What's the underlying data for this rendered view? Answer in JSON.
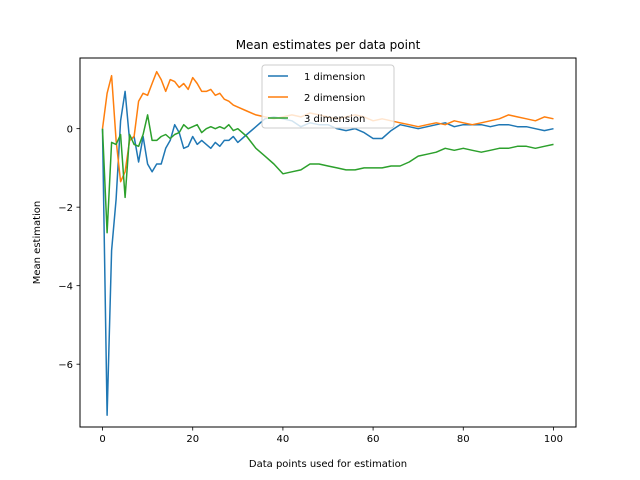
{
  "chart_data": {
    "type": "line",
    "title": "Mean estimates per data point",
    "xlabel": "Data points used for estimation",
    "ylabel": "Mean estimation",
    "xlim": [
      -5,
      105
    ],
    "ylim": [
      -7.6,
      1.8
    ],
    "xticks": [
      0,
      20,
      40,
      60,
      80,
      100
    ],
    "yticks": [
      -6,
      -4,
      -2,
      0
    ],
    "ytick_labels": [
      "−6",
      "−4",
      "−2",
      "0"
    ],
    "grid": false,
    "legend_position": "top-center",
    "series": [
      {
        "name": "1 dimension",
        "color": "#1f77b4",
        "points": [
          [
            0,
            0
          ],
          [
            1,
            -7.3
          ],
          [
            2,
            -3.1
          ],
          [
            3,
            -1.8
          ],
          [
            4,
            0.2
          ],
          [
            5,
            0.95
          ],
          [
            6,
            -0.3
          ],
          [
            7,
            -0.2
          ],
          [
            8,
            -0.85
          ],
          [
            9,
            -0.2
          ],
          [
            10,
            -0.9
          ],
          [
            11,
            -1.1
          ],
          [
            12,
            -0.9
          ],
          [
            13,
            -0.9
          ],
          [
            14,
            -0.5
          ],
          [
            15,
            -0.3
          ],
          [
            16,
            0.1
          ],
          [
            17,
            -0.1
          ],
          [
            18,
            -0.5
          ],
          [
            19,
            -0.45
          ],
          [
            20,
            -0.2
          ],
          [
            21,
            -0.4
          ],
          [
            22,
            -0.3
          ],
          [
            23,
            -0.4
          ],
          [
            24,
            -0.5
          ],
          [
            25,
            -0.35
          ],
          [
            26,
            -0.45
          ],
          [
            27,
            -0.3
          ],
          [
            28,
            -0.3
          ],
          [
            29,
            -0.2
          ],
          [
            30,
            -0.35
          ],
          [
            32,
            -0.15
          ],
          [
            34,
            0.05
          ],
          [
            36,
            0.25
          ],
          [
            38,
            0.3
          ],
          [
            40,
            0.25
          ],
          [
            42,
            0.2
          ],
          [
            44,
            0.05
          ],
          [
            46,
            0.15
          ],
          [
            48,
            0.1
          ],
          [
            50,
            0.1
          ],
          [
            52,
            0.0
          ],
          [
            54,
            -0.05
          ],
          [
            56,
            0.0
          ],
          [
            58,
            -0.1
          ],
          [
            60,
            -0.25
          ],
          [
            62,
            -0.25
          ],
          [
            64,
            -0.05
          ],
          [
            66,
            0.1
          ],
          [
            68,
            0.05
          ],
          [
            70,
            0.0
          ],
          [
            72,
            0.05
          ],
          [
            74,
            0.1
          ],
          [
            76,
            0.15
          ],
          [
            78,
            0.05
          ],
          [
            80,
            0.1
          ],
          [
            82,
            0.1
          ],
          [
            84,
            0.1
          ],
          [
            86,
            0.05
          ],
          [
            88,
            0.1
          ],
          [
            90,
            0.1
          ],
          [
            92,
            0.05
          ],
          [
            94,
            0.05
          ],
          [
            96,
            0.0
          ],
          [
            98,
            -0.05
          ],
          [
            100,
            0.0
          ]
        ]
      },
      {
        "name": "2 dimension",
        "color": "#ff7f0e",
        "points": [
          [
            0,
            0
          ],
          [
            1,
            0.9
          ],
          [
            2,
            1.35
          ],
          [
            3,
            -0.3
          ],
          [
            4,
            -1.35
          ],
          [
            5,
            -1.1
          ],
          [
            6,
            -0.3
          ],
          [
            7,
            -0.2
          ],
          [
            8,
            0.7
          ],
          [
            9,
            0.9
          ],
          [
            10,
            0.85
          ],
          [
            11,
            1.15
          ],
          [
            12,
            1.45
          ],
          [
            13,
            1.25
          ],
          [
            14,
            0.95
          ],
          [
            15,
            1.25
          ],
          [
            16,
            1.2
          ],
          [
            17,
            1.05
          ],
          [
            18,
            1.15
          ],
          [
            19,
            1.0
          ],
          [
            20,
            1.3
          ],
          [
            21,
            1.15
          ],
          [
            22,
            0.95
          ],
          [
            23,
            0.95
          ],
          [
            24,
            1.0
          ],
          [
            25,
            0.85
          ],
          [
            26,
            0.9
          ],
          [
            27,
            0.75
          ],
          [
            28,
            0.7
          ],
          [
            29,
            0.6
          ],
          [
            30,
            0.55
          ],
          [
            32,
            0.45
          ],
          [
            34,
            0.35
          ],
          [
            36,
            0.3
          ],
          [
            38,
            0.25
          ],
          [
            40,
            0.3
          ],
          [
            42,
            0.35
          ],
          [
            44,
            0.3
          ],
          [
            46,
            0.4
          ],
          [
            48,
            0.35
          ],
          [
            50,
            0.3
          ],
          [
            52,
            0.25
          ],
          [
            54,
            0.3
          ],
          [
            56,
            0.35
          ],
          [
            58,
            0.3
          ],
          [
            60,
            0.2
          ],
          [
            62,
            0.25
          ],
          [
            64,
            0.2
          ],
          [
            66,
            0.15
          ],
          [
            68,
            0.1
          ],
          [
            70,
            0.05
          ],
          [
            72,
            0.1
          ],
          [
            74,
            0.15
          ],
          [
            76,
            0.1
          ],
          [
            78,
            0.2
          ],
          [
            80,
            0.15
          ],
          [
            82,
            0.1
          ],
          [
            84,
            0.15
          ],
          [
            86,
            0.2
          ],
          [
            88,
            0.25
          ],
          [
            90,
            0.35
          ],
          [
            92,
            0.3
          ],
          [
            94,
            0.25
          ],
          [
            96,
            0.2
          ],
          [
            98,
            0.3
          ],
          [
            100,
            0.25
          ]
        ]
      },
      {
        "name": "3 dimension",
        "color": "#2ca02c",
        "points": [
          [
            0,
            0
          ],
          [
            1,
            -2.65
          ],
          [
            2,
            -0.35
          ],
          [
            3,
            -0.4
          ],
          [
            4,
            -0.15
          ],
          [
            5,
            -1.75
          ],
          [
            6,
            -0.15
          ],
          [
            7,
            -0.4
          ],
          [
            8,
            -0.45
          ],
          [
            9,
            -0.15
          ],
          [
            10,
            0.35
          ],
          [
            11,
            -0.3
          ],
          [
            12,
            -0.3
          ],
          [
            13,
            -0.2
          ],
          [
            14,
            -0.15
          ],
          [
            15,
            -0.25
          ],
          [
            16,
            -0.15
          ],
          [
            17,
            -0.1
          ],
          [
            18,
            0.1
          ],
          [
            19,
            0.0
          ],
          [
            20,
            0.05
          ],
          [
            21,
            0.1
          ],
          [
            22,
            -0.1
          ],
          [
            23,
            0.0
          ],
          [
            24,
            0.05
          ],
          [
            25,
            0.0
          ],
          [
            26,
            0.05
          ],
          [
            27,
            0.0
          ],
          [
            28,
            0.1
          ],
          [
            29,
            -0.05
          ],
          [
            30,
            0.0
          ],
          [
            32,
            -0.2
          ],
          [
            34,
            -0.5
          ],
          [
            36,
            -0.7
          ],
          [
            38,
            -0.9
          ],
          [
            40,
            -1.15
          ],
          [
            42,
            -1.1
          ],
          [
            44,
            -1.05
          ],
          [
            46,
            -0.9
          ],
          [
            48,
            -0.9
          ],
          [
            50,
            -0.95
          ],
          [
            52,
            -1.0
          ],
          [
            54,
            -1.05
          ],
          [
            56,
            -1.05
          ],
          [
            58,
            -1.0
          ],
          [
            60,
            -1.0
          ],
          [
            62,
            -1.0
          ],
          [
            64,
            -0.95
          ],
          [
            66,
            -0.95
          ],
          [
            68,
            -0.85
          ],
          [
            70,
            -0.7
          ],
          [
            72,
            -0.65
          ],
          [
            74,
            -0.6
          ],
          [
            76,
            -0.5
          ],
          [
            78,
            -0.55
          ],
          [
            80,
            -0.5
          ],
          [
            82,
            -0.55
          ],
          [
            84,
            -0.6
          ],
          [
            86,
            -0.55
          ],
          [
            88,
            -0.5
          ],
          [
            90,
            -0.5
          ],
          [
            92,
            -0.45
          ],
          [
            94,
            -0.45
          ],
          [
            96,
            -0.5
          ],
          [
            98,
            -0.45
          ],
          [
            100,
            -0.4
          ]
        ]
      }
    ]
  }
}
